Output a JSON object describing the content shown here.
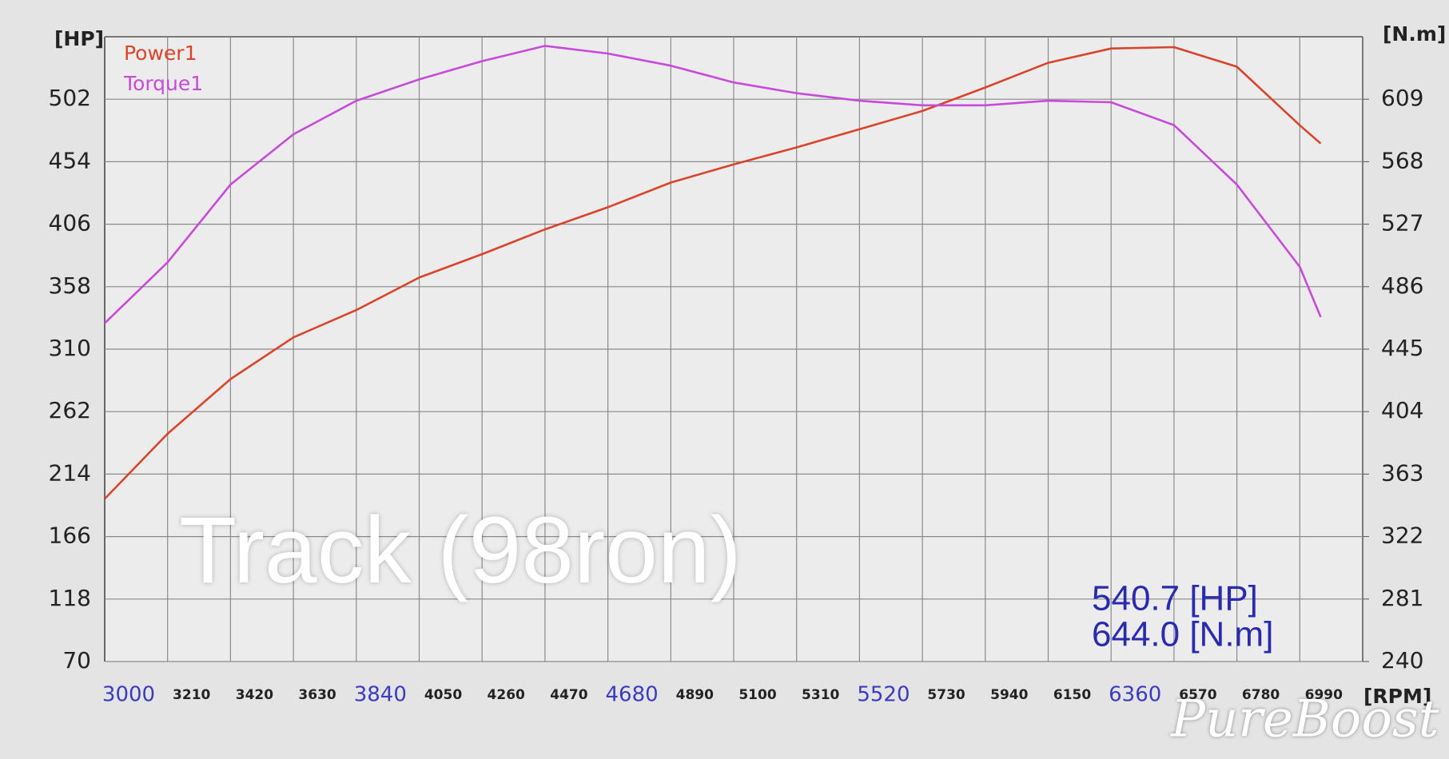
{
  "chart_data": {
    "type": "line",
    "x_label": "[RPM]",
    "y_label": "[HP]",
    "y2_label": "[N.m]",
    "x": [
      3000,
      3210,
      3420,
      3630,
      3840,
      4050,
      4260,
      4470,
      4680,
      4890,
      5100,
      5310,
      5520,
      5730,
      5940,
      6150,
      6360,
      6570,
      6780,
      6990,
      7060
    ],
    "series": [
      {
        "name": "Power1",
        "color": "#d8452b",
        "values": [
          195,
          245,
          287,
          319,
          340,
          365,
          383,
          402,
          419,
          438,
          452,
          465,
          479,
          493,
          511,
          530,
          541,
          542,
          527,
          482,
          468
        ]
      },
      {
        "name": "Torque1",
        "color": "#c84ad8",
        "axis": "y2",
        "values": [
          462,
          502,
          553,
          586,
          608,
          622,
          634,
          644,
          639,
          631,
          620,
          613,
          608,
          605,
          605,
          608,
          607,
          592,
          553,
          499,
          466
        ]
      }
    ],
    "xlim": [
      3000,
      7200
    ],
    "xticks": [
      3000,
      3210,
      3420,
      3630,
      3840,
      4050,
      4260,
      4470,
      4680,
      4890,
      5100,
      5310,
      5520,
      5730,
      5940,
      6150,
      6360,
      6570,
      6780,
      6990
    ],
    "ylim": [
      70,
      550
    ],
    "yticks": [
      70,
      118,
      166,
      214,
      262,
      310,
      358,
      406,
      454,
      502
    ],
    "y2lim": [
      240,
      650
    ],
    "y2ticks": [
      240,
      281,
      322,
      363,
      404,
      445,
      486,
      527,
      568,
      609
    ],
    "grid": true,
    "annotations": [
      "Track (98ron)",
      "540.7  [HP]",
      "644.0  [N.m]"
    ],
    "watermark": "PureBoost"
  }
}
